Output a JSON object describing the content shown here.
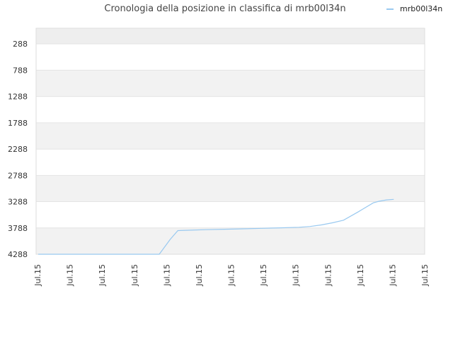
{
  "chart_data": {
    "type": "line",
    "title": "Cronologia della posizione in classifica di mrb00l34n",
    "xlabel": "",
    "ylabel": "",
    "y_inverted": true,
    "ylim": [
      4288,
      -10
    ],
    "y_ticks": [
      288,
      788,
      1288,
      1788,
      2288,
      2788,
      3288,
      3788,
      4288
    ],
    "x_tick_labels": [
      "Jul.15",
      "Jul.15",
      "Jul.15",
      "Jul.15",
      "Jul.15",
      "Jul.15",
      "Jul.15",
      "Jul.15",
      "Jul.15",
      "Jul.15",
      "Jul.15",
      "Jul.15",
      "Jul.15"
    ],
    "grid": true,
    "legend_position": "top-right",
    "series": [
      {
        "name": "mrb00l34n",
        "color": "#99c9f0",
        "x": [
          0,
          1,
          2,
          3,
          4,
          5,
          6,
          7,
          8,
          9,
          10,
          11,
          12,
          13,
          14,
          15,
          16,
          17,
          18,
          19,
          20,
          21,
          22,
          23,
          24,
          25,
          26
        ],
        "values": [
          4288,
          4288,
          4288,
          4288,
          4288,
          4288,
          4288,
          4288,
          4288,
          4000,
          3838,
          3830,
          3820,
          3812,
          3805,
          3795,
          3785,
          3775,
          3760,
          3730,
          3690,
          3640,
          3480,
          3310,
          3280,
          3255,
          3245
        ],
        "x_positions": [
          0,
          0.062,
          0.124,
          0.186,
          0.248,
          0.29,
          0.31,
          0.32,
          0.325,
          0.355,
          0.375,
          0.41,
          0.45,
          0.5,
          0.55,
          0.6,
          0.65,
          0.7,
          0.73,
          0.76,
          0.79,
          0.82,
          0.86,
          0.9,
          0.915,
          0.935,
          0.955
        ]
      }
    ]
  }
}
